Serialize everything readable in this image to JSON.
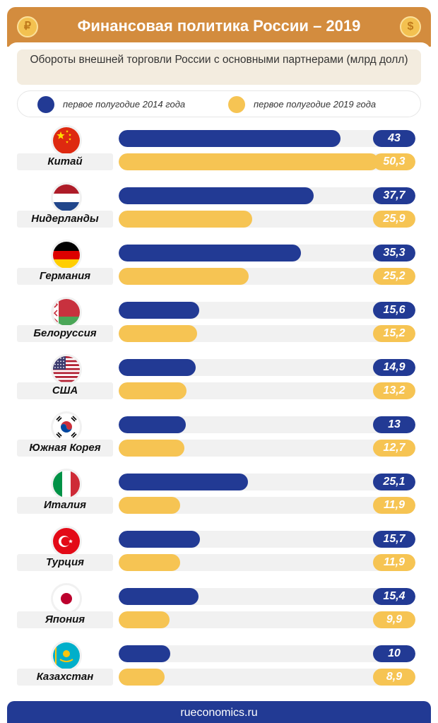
{
  "header": {
    "title": "Финансовая политика России – 2019",
    "coin_symbol": "₽",
    "coin_symbol_right": "$"
  },
  "subtitle": "Обороты внешней торговли России с основными партнерами (млрд долл)",
  "legend": [
    {
      "label": "первое полугодие 2014 года",
      "color": "#223a94"
    },
    {
      "label": "первое полугодие 2019 года",
      "color": "#f6c453"
    }
  ],
  "colors": {
    "series_2014": "#223a94",
    "series_2019": "#f6c453",
    "text_2014": "#ffffff",
    "text_2019": "#ffffff",
    "track": "#f1f1f1",
    "header": "#d38c3e",
    "footer": "#223a94"
  },
  "footer": {
    "text": "rueconomics.ru"
  },
  "chart_data": {
    "type": "bar",
    "orientation": "horizontal",
    "subtitle": "Обороты внешней торговли России с основными партнерами (млрд долл)",
    "categories": [
      "Китай",
      "Нидерланды",
      "Германия",
      "Белоруссия",
      "США",
      "Южная Корея",
      "Италия",
      "Турция",
      "Япония",
      "Казахстан"
    ],
    "flags": [
      "china-flag-icon",
      "netherlands-flag-icon",
      "germany-flag-icon",
      "belarus-flag-icon",
      "usa-flag-icon",
      "south-korea-flag-icon",
      "italy-flag-icon",
      "turkey-flag-icon",
      "japan-flag-icon",
      "kazakhstan-flag-icon"
    ],
    "series": [
      {
        "name": "первое полугодие 2014 года",
        "values": [
          43,
          37.7,
          35.3,
          15.6,
          14.9,
          13,
          25.1,
          15.7,
          15.4,
          10
        ]
      },
      {
        "name": "первое полугодие 2019 года",
        "values": [
          50.3,
          25.9,
          25.2,
          15.2,
          13.2,
          12.7,
          11.9,
          11.9,
          9.9,
          8.9
        ]
      }
    ],
    "value_labels": [
      [
        "43",
        "37,7",
        "35,3",
        "15,6",
        "14,9",
        "13",
        "25,1",
        "15,7",
        "15,4",
        "10"
      ],
      [
        "50,3",
        "25,9",
        "25,2",
        "15,2",
        "13,2",
        "12,7",
        "11,9",
        "11,9",
        "9,9",
        "8,9"
      ]
    ],
    "xlim": [
      0,
      52
    ],
    "legend_position": "top",
    "grid": false
  }
}
